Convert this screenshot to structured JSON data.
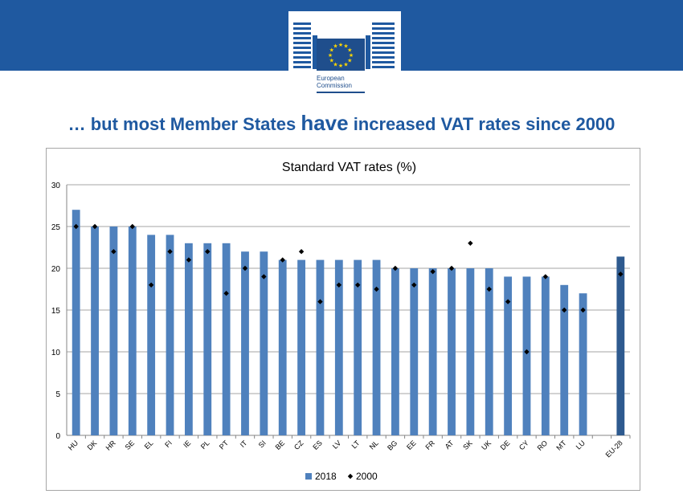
{
  "header": {
    "logo_line1": "European",
    "logo_line2": "Commission",
    "brand_color": "#1f59a0"
  },
  "headline": {
    "prefix": "… but most Member States ",
    "emphasis": "have",
    "suffix": " increased VAT rates since 2000"
  },
  "chart_data": {
    "type": "bar",
    "title": "Standard VAT rates (%)",
    "xlabel": "",
    "ylabel": "",
    "ylim": [
      0,
      30
    ],
    "yticks": [
      0,
      5,
      10,
      15,
      20,
      25,
      30
    ],
    "grid": true,
    "legend_position": "bottom",
    "categories": [
      "HU",
      "DK",
      "HR",
      "SE",
      "EL",
      "FI",
      "IE",
      "PL",
      "PT",
      "IT",
      "SI",
      "BE",
      "CZ",
      "ES",
      "LV",
      "LT",
      "NL",
      "BG",
      "EE",
      "FR",
      "AT",
      "SK",
      "UK",
      "DE",
      "CY",
      "RO",
      "MT",
      "LU",
      "",
      "EU-28"
    ],
    "series": [
      {
        "name": "2018",
        "kind": "bar",
        "color": "#4f81bd",
        "highlight_color": "#2e5a8f",
        "values": [
          27,
          25,
          25,
          25,
          24,
          24,
          23,
          23,
          23,
          22,
          22,
          21,
          21,
          21,
          21,
          21,
          21,
          20,
          20,
          20,
          20,
          20,
          20,
          19,
          19,
          19,
          18,
          17,
          null,
          21.4
        ]
      },
      {
        "name": "2000",
        "kind": "marker",
        "color": "#000000",
        "values": [
          25,
          25,
          22,
          25,
          18,
          22,
          21,
          22,
          17,
          20,
          19,
          21,
          22,
          16,
          18,
          18,
          17.5,
          20,
          18,
          19.6,
          20,
          23,
          17.5,
          16,
          10,
          19,
          15,
          15,
          null,
          19.3
        ]
      }
    ]
  }
}
